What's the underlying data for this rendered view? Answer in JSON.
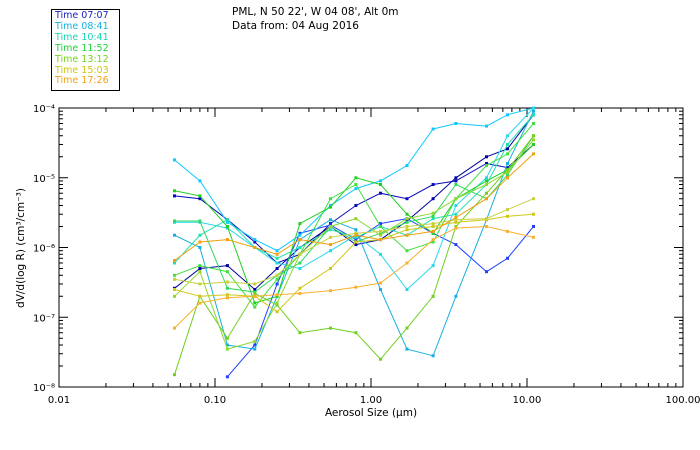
{
  "header": {
    "location": "PML, N 50 22', W 04 08', Alt 0m",
    "date": "Data from: 04 Aug 2016"
  },
  "legend": {
    "items": [
      {
        "label": "Time 07:07",
        "color": "#1b22c8"
      },
      {
        "label": "Time 08:41",
        "color": "#12b4dc"
      },
      {
        "label": "Time 10:41",
        "color": "#16d6b4"
      },
      {
        "label": "Time 11:52",
        "color": "#1fd23c"
      },
      {
        "label": "Time 13:12",
        "color": "#78d21e"
      },
      {
        "label": "Time 15:03",
        "color": "#cdc814"
      },
      {
        "label": "Time 17:26",
        "color": "#f5a014"
      }
    ]
  },
  "chart_data": {
    "type": "line",
    "title": "",
    "xlabel": "Aerosol Size (μm)",
    "ylabel": "dV/d(log R) (cm³/cm⁻³)",
    "x_scale": "log",
    "y_scale": "log",
    "xlim": [
      0.01,
      100
    ],
    "ylim": [
      1e-08,
      0.0001
    ],
    "x_tick_labels": [
      "0.01",
      "0.10",
      "1.00",
      "10.00",
      "100.00"
    ],
    "y_tick_labels": [
      "10⁻⁸",
      "10⁻⁷",
      "10⁻⁶",
      "10⁻⁵",
      "10⁻⁴"
    ],
    "grid": false,
    "legend_position": "top-left outside",
    "series": [
      {
        "name": "Time 07:07",
        "color": "#0a0abf",
        "x": [
          0.055,
          0.08,
          0.12,
          0.18,
          0.25,
          0.35,
          0.55,
          0.8,
          1.15,
          1.7,
          2.5,
          3.5,
          5.5,
          7.5,
          11
        ],
        "y": [
          5.5e-06,
          5e-06,
          2.5e-06,
          1.2e-06,
          6e-07,
          8e-07,
          2.2e-06,
          4e-06,
          6e-06,
          5e-06,
          8e-06,
          9e-06,
          1.6e-05,
          1.4e-05,
          3e-05
        ]
      },
      {
        "name": "Time 07:07",
        "color": "#0000a0",
        "x": [
          0.055,
          0.08,
          0.12,
          0.18,
          0.25,
          0.35,
          0.55,
          0.8,
          1.15,
          1.7,
          2.5,
          3.5,
          5.5,
          7.5,
          11
        ],
        "y": [
          2.6e-07,
          5e-07,
          5.5e-07,
          2.5e-07,
          5e-07,
          1e-06,
          2e-06,
          1.1e-06,
          1.3e-06,
          2.4e-06,
          5e-06,
          1e-05,
          2e-05,
          2.6e-05,
          8e-05
        ]
      },
      {
        "name": "Time 07:07",
        "color": "#2040ff",
        "x": [
          0.12,
          0.18,
          0.25,
          0.35,
          0.55,
          0.8,
          1.15,
          1.7,
          2.5,
          3.5,
          5.5,
          7.5,
          11
        ],
        "y": [
          1.4e-08,
          4e-08,
          3e-07,
          1.6e-06,
          2.1e-06,
          1.3e-06,
          2.2e-06,
          2.6e-06,
          1.6e-06,
          1.1e-06,
          4.5e-07,
          7e-07,
          2e-06
        ]
      },
      {
        "name": "Time 08:41",
        "color": "#10c8ff",
        "x": [
          0.055,
          0.08,
          0.12,
          0.18,
          0.25,
          0.35,
          0.55,
          0.8,
          1.15,
          1.7,
          2.5,
          3.5,
          5.5,
          7.5,
          11
        ],
        "y": [
          1.8e-05,
          9e-06,
          2.3e-06,
          1.3e-06,
          9e-07,
          1.5e-06,
          4e-06,
          7e-06,
          9e-06,
          1.5e-05,
          5e-05,
          6e-05,
          5.5e-05,
          8e-05,
          0.0001
        ]
      },
      {
        "name": "Time 08:41",
        "color": "#28d8e8",
        "x": [
          0.055,
          0.08,
          0.12,
          0.18,
          0.25,
          0.35,
          0.55,
          0.8,
          1.15,
          1.7,
          2.5,
          3.5,
          5.5,
          7.5,
          11
        ],
        "y": [
          2.3e-06,
          2.3e-06,
          1.9e-06,
          1e-06,
          6e-07,
          5e-07,
          9e-07,
          1.5e-06,
          8e-07,
          2.5e-07,
          5.5e-07,
          4e-06,
          1e-05,
          4e-05,
          0.00012
        ]
      },
      {
        "name": "Time 08:41",
        "color": "#18b0e0",
        "x": [
          0.055,
          0.08,
          0.12,
          0.18,
          0.25,
          0.35,
          0.55,
          0.8,
          1.15,
          1.7,
          2.5,
          3.5,
          5.5,
          7.5,
          11
        ],
        "y": [
          1.5e-06,
          1e-06,
          4e-08,
          3.5e-08,
          2e-07,
          1.3e-06,
          2.5e-06,
          1.8e-06,
          2.5e-07,
          3.5e-08,
          2.8e-08,
          2e-07,
          2.5e-06,
          1.6e-05,
          9e-05
        ]
      },
      {
        "name": "Time 10:41",
        "color": "#20e0b0",
        "x": [
          0.055,
          0.08,
          0.12,
          0.18,
          0.25,
          0.35,
          0.55,
          0.8,
          1.15,
          1.7,
          2.5,
          3.5,
          5.5,
          7.5,
          11
        ],
        "y": [
          6e-07,
          1.5e-06,
          2.5e-06,
          1e-06,
          7e-07,
          1e-06,
          1.8e-06,
          1.4e-06,
          2e-06,
          1.5e-06,
          2.6e-06,
          3e-06,
          8e-06,
          3e-05,
          8e-05
        ]
      },
      {
        "name": "Time 11:52",
        "color": "#20d020",
        "x": [
          0.055,
          0.08,
          0.12,
          0.18,
          0.25,
          0.35,
          0.55,
          0.8,
          1.15,
          1.7,
          2.5,
          3.5,
          5.5,
          7.5,
          11
        ],
        "y": [
          6.5e-06,
          5.5e-06,
          2e-06,
          1.6e-07,
          2e-07,
          2.2e-06,
          3.8e-06,
          1e-05,
          8e-06,
          3e-06,
          1.6e-06,
          5e-06,
          9e-06,
          1.3e-05,
          3e-05
        ]
      },
      {
        "name": "Time 11:52",
        "color": "#30d860",
        "x": [
          0.055,
          0.08,
          0.12,
          0.18,
          0.25,
          0.35,
          0.55,
          0.8,
          1.15,
          1.7,
          2.5,
          3.5,
          5.5,
          7.5,
          11
        ],
        "y": [
          2.4e-06,
          2.4e-06,
          2.6e-07,
          2.3e-07,
          4e-07,
          6e-07,
          2e-06,
          1.2e-06,
          1.6e-06,
          2.3e-06,
          2.8e-06,
          8e-06,
          5e-06,
          1.1e-05,
          4e-05
        ]
      },
      {
        "name": "Time 11:52",
        "color": "#40e040",
        "x": [
          0.055,
          0.08,
          0.12,
          0.18,
          0.25,
          0.35,
          0.55,
          0.8,
          1.15,
          1.7,
          2.5,
          3.5,
          5.5,
          7.5,
          11
        ],
        "y": [
          4e-07,
          5.5e-07,
          4.5e-07,
          1.4e-07,
          3.5e-07,
          8e-07,
          5e-06,
          8e-06,
          2e-06,
          9e-07,
          1.2e-06,
          5e-06,
          1.5e-05,
          2.2e-05,
          6e-05
        ]
      },
      {
        "name": "Time 13:12",
        "color": "#70d020",
        "x": [
          0.055,
          0.08,
          0.12,
          0.18,
          0.25,
          0.35,
          0.55,
          0.8,
          1.15,
          1.7,
          2.5,
          3.5,
          5.5,
          7.5,
          11
        ],
        "y": [
          1.5e-08,
          2e-07,
          5e-08,
          2.2e-07,
          1.5e-07,
          6e-08,
          7e-08,
          6e-08,
          2.5e-08,
          7e-08,
          2e-07,
          2e-06,
          6e-06,
          1.3e-05,
          4e-05
        ]
      },
      {
        "name": "Time 13:12",
        "color": "#90d830",
        "x": [
          0.055,
          0.08,
          0.12,
          0.18,
          0.25,
          0.35,
          0.55,
          0.8,
          1.15,
          1.7,
          2.5,
          3.5,
          5.5,
          7.5,
          11
        ],
        "y": [
          2e-07,
          4.5e-07,
          3.5e-08,
          4.5e-08,
          1.6e-07,
          8e-07,
          2e-06,
          2.6e-06,
          1.5e-06,
          2.6e-06,
          3.1e-06,
          5e-06,
          8e-06,
          1.2e-05,
          3.5e-05
        ]
      },
      {
        "name": "Time 15:03",
        "color": "#d0c818",
        "x": [
          0.055,
          0.08,
          0.12,
          0.18,
          0.25,
          0.35,
          0.55,
          0.8,
          1.15,
          1.7,
          2.5,
          3.5,
          5.5,
          7.5,
          11
        ],
        "y": [
          2.5e-07,
          2e-07,
          2.1e-07,
          2e-07,
          1.2e-07,
          2.6e-07,
          5e-07,
          1.2e-06,
          1.3e-06,
          1.8e-06,
          2e-06,
          2.3e-06,
          2.5e-06,
          2.8e-06,
          3e-06
        ]
      },
      {
        "name": "Time 15:03",
        "color": "#c8d040",
        "x": [
          0.055,
          0.08,
          0.12,
          0.18,
          0.25,
          0.35,
          0.55,
          0.8,
          1.15,
          1.7,
          2.5,
          3.5,
          5.5,
          7.5,
          11
        ],
        "y": [
          3.5e-07,
          3e-07,
          3.2e-07,
          3e-07,
          4e-07,
          8e-07,
          1.4e-06,
          1.6e-06,
          1.7e-06,
          2e-06,
          2.2e-06,
          2.5e-06,
          2.6e-06,
          3.5e-06,
          5e-06
        ]
      },
      {
        "name": "Time 17:26",
        "color": "#f0a010",
        "x": [
          0.055,
          0.08,
          0.12,
          0.18,
          0.25,
          0.35,
          0.55,
          0.8,
          1.15,
          1.7,
          2.5,
          3.5,
          5.5,
          7.5,
          11
        ],
        "y": [
          6.5e-07,
          1.2e-06,
          1.3e-06,
          1e-06,
          8e-07,
          1.3e-06,
          1.1e-06,
          1.5e-06,
          1.3e-06,
          1.5e-06,
          1.7e-06,
          2.7e-06,
          5e-06,
          1e-05,
          2.2e-05
        ]
      },
      {
        "name": "Time 17:26",
        "color": "#f8b030",
        "x": [
          0.055,
          0.08,
          0.12,
          0.18,
          0.25,
          0.35,
          0.55,
          0.8,
          1.15,
          1.7,
          2.5,
          3.5,
          5.5,
          7.5,
          11
        ],
        "y": [
          7e-08,
          1.6e-07,
          1.9e-07,
          2e-07,
          2.1e-07,
          2.2e-07,
          2.4e-07,
          2.7e-07,
          3.1e-07,
          6e-07,
          1.3e-06,
          1.9e-06,
          2e-06,
          1.7e-06,
          1.4e-06
        ]
      }
    ]
  }
}
